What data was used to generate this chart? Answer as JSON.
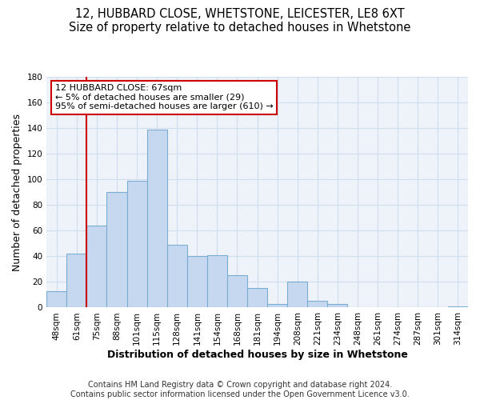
{
  "title1": "12, HUBBARD CLOSE, WHETSTONE, LEICESTER, LE8 6XT",
  "title2": "Size of property relative to detached houses in Whetstone",
  "xlabel": "Distribution of detached houses by size in Whetstone",
  "ylabel": "Number of detached properties",
  "bar_labels": [
    "48sqm",
    "61sqm",
    "75sqm",
    "88sqm",
    "101sqm",
    "115sqm",
    "128sqm",
    "141sqm",
    "154sqm",
    "168sqm",
    "181sqm",
    "194sqm",
    "208sqm",
    "221sqm",
    "234sqm",
    "248sqm",
    "261sqm",
    "274sqm",
    "287sqm",
    "301sqm",
    "314sqm"
  ],
  "bar_heights": [
    13,
    42,
    64,
    90,
    99,
    139,
    49,
    40,
    41,
    25,
    15,
    3,
    20,
    5,
    3,
    0,
    0,
    0,
    0,
    0,
    1
  ],
  "bar_color": "#c5d8f0",
  "bar_edge_color": "#7aadcf",
  "vline_color": "#cc0000",
  "annotation_title": "12 HUBBARD CLOSE: 67sqm",
  "annotation_line1": "← 5% of detached houses are smaller (29)",
  "annotation_line2": "95% of semi-detached houses are larger (610) →",
  "annotation_box_color": "#ffffff",
  "annotation_box_edge": "#cc0000",
  "ylim": [
    0,
    180
  ],
  "yticks": [
    0,
    20,
    40,
    60,
    80,
    100,
    120,
    140,
    160,
    180
  ],
  "footer1": "Contains HM Land Registry data © Crown copyright and database right 2024.",
  "footer2": "Contains public sector information licensed under the Open Government Licence v3.0.",
  "title1_fontsize": 10.5,
  "title2_fontsize": 9.5,
  "axis_label_fontsize": 9,
  "tick_fontsize": 7.5,
  "footer_fontsize": 7,
  "grid_color": "#d0dded"
}
